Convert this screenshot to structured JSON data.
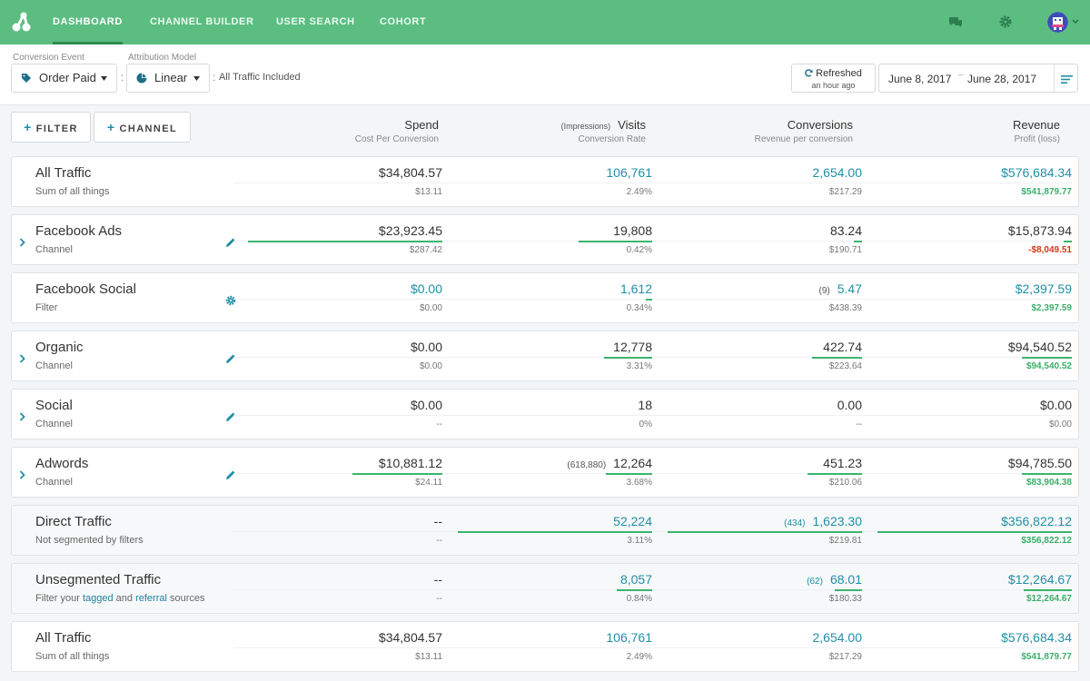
{
  "nav": {
    "links": [
      "DASHBOARD",
      "CHANNEL BUILDER",
      "USER SEARCH",
      "COHORT"
    ],
    "icons": [
      "chat-icon",
      "gear-icon",
      "avatar"
    ]
  },
  "toolbar": {
    "conversion_event_label": "Conversion Event",
    "conversion_event_value": "Order Paid",
    "attribution_model_label": "Attribution Model",
    "attribution_model_value": "Linear",
    "separator": ":",
    "traffic_note": "All Traffic Included",
    "refresh_title": "Refreshed",
    "refresh_sub": "an hour ago",
    "date_start": "June 8, 2017",
    "date_sep": "–",
    "date_end": "June 28, 2017"
  },
  "header": {
    "filter_button": "FILTER",
    "channel_button": "CHANNEL",
    "columns": [
      {
        "title": "Spend",
        "prefix": "",
        "sub": "Cost Per Conversion"
      },
      {
        "title": "Visits",
        "prefix": "(Impressions)",
        "sub": "Conversion Rate"
      },
      {
        "title": "Conversions",
        "prefix": "",
        "sub": "Revenue per conversion"
      },
      {
        "title": "Revenue",
        "prefix": "",
        "sub": "Profit (loss)"
      }
    ]
  },
  "colors": {
    "nav": "#5bbd80",
    "accent": "#1f8fa8",
    "positive": "#3aaf6a",
    "negative": "#cc3a1a",
    "bar": "#3bb56d"
  },
  "rows": [
    {
      "name": "All Traffic",
      "sub": "Sum of all things",
      "expandable": false,
      "action_icon": "",
      "cells": [
        {
          "v": "$34,804.57",
          "s": "$13.11"
        },
        {
          "v": "106,761",
          "s": "2.49%",
          "vblue": true
        },
        {
          "v": "2,654.00",
          "s": "$217.29",
          "vblue": true
        },
        {
          "v": "$576,684.34",
          "s": "$541,879.77",
          "vblue": true,
          "sgreen": true
        }
      ]
    },
    {
      "name": "Facebook Ads",
      "sub": "Channel",
      "expandable": true,
      "action_icon": "pencil-icon",
      "cells": [
        {
          "v": "$23,923.45",
          "s": "$287.42",
          "bar": 0.93
        },
        {
          "v": "19,808",
          "s": "0.42%",
          "bar": 0.35
        },
        {
          "v": "83.24",
          "s": "$190.71",
          "bar": 0.04
        },
        {
          "v": "$15,873.94",
          "s": "-$8,049.51",
          "sred": true,
          "bar": 0.04
        }
      ]
    },
    {
      "name": "Facebook Social",
      "sub": "Filter",
      "expandable": false,
      "action_icon": "gear-icon",
      "cells": [
        {
          "v": "$0.00",
          "s": "$0.00",
          "vblue": true
        },
        {
          "v": "1,612",
          "s": "0.34%",
          "vblue": true,
          "bar": 0.03
        },
        {
          "v": "5.47",
          "pre": "(9)",
          "s": "$438.39",
          "vblue": true
        },
        {
          "v": "$2,397.59",
          "s": "$2,397.59",
          "vblue": true,
          "sgreen": true
        }
      ]
    },
    {
      "name": "Organic",
      "sub": "Channel",
      "expandable": true,
      "action_icon": "pencil-icon",
      "cells": [
        {
          "v": "$0.00",
          "s": "$0.00"
        },
        {
          "v": "12,778",
          "s": "3.31%",
          "bar": 0.23
        },
        {
          "v": "422.74",
          "s": "$223.64",
          "bar": 0.24
        },
        {
          "v": "$94,540.52",
          "s": "$94,540.52",
          "sgreen": true,
          "bar": 0.24
        }
      ]
    },
    {
      "name": "Social",
      "sub": "Channel",
      "expandable": true,
      "action_icon": "pencil-icon",
      "cells": [
        {
          "v": "$0.00",
          "s": "--"
        },
        {
          "v": "18",
          "s": "0%"
        },
        {
          "v": "0.00",
          "s": "--"
        },
        {
          "v": "$0.00",
          "s": "$0.00"
        }
      ]
    },
    {
      "name": "Adwords",
      "sub": "Channel",
      "expandable": true,
      "action_icon": "pencil-icon",
      "cells": [
        {
          "v": "$10,881.12",
          "s": "$24.11",
          "bar": 0.43
        },
        {
          "v": "12,264",
          "pre": "(618,880)",
          "s": "3.68%",
          "bar": 0.22
        },
        {
          "v": "451.23",
          "s": "$210.06",
          "bar": 0.26
        },
        {
          "v": "$94,785.50",
          "s": "$83,904.38",
          "sgreen": true,
          "bar": 0.24
        }
      ]
    },
    {
      "name": "Direct Traffic",
      "sub": "Not segmented by filters",
      "expandable": false,
      "action_icon": "",
      "gray": true,
      "cells": [
        {
          "v": "--",
          "s": "--"
        },
        {
          "v": "52,224",
          "s": "3.11%",
          "vblue": true,
          "bar": 0.93
        },
        {
          "v": "1,623.30",
          "pre": "(434)",
          "s": "$219.81",
          "vblue": true,
          "preblue": true,
          "bar": 0.93
        },
        {
          "v": "$356,822.12",
          "s": "$356,822.12",
          "vblue": true,
          "sgreen": true,
          "bar": 0.93
        }
      ]
    },
    {
      "name": "Unsegmented Traffic",
      "sub_parts": [
        "Filter your ",
        "tagged",
        " and ",
        "referral",
        " sources"
      ],
      "expandable": false,
      "action_icon": "",
      "gray": true,
      "cells": [
        {
          "v": "--",
          "s": "--"
        },
        {
          "v": "8,057",
          "s": "0.84%",
          "vblue": true,
          "bar": 0.17
        },
        {
          "v": "68.01",
          "pre": "(62)",
          "s": "$180.33",
          "vblue": true,
          "preblue": true,
          "bar": 0.13
        },
        {
          "v": "$12,264.67",
          "s": "$12,264.67",
          "vblue": true,
          "sgreen": true,
          "bar": 0.23
        }
      ]
    },
    {
      "name": "All Traffic",
      "sub": "Sum of all things",
      "expandable": false,
      "action_icon": "",
      "cells": [
        {
          "v": "$34,804.57",
          "s": "$13.11"
        },
        {
          "v": "106,761",
          "s": "2.49%",
          "vblue": true
        },
        {
          "v": "2,654.00",
          "s": "$217.29",
          "vblue": true
        },
        {
          "v": "$576,684.34",
          "s": "$541,879.77",
          "vblue": true,
          "sgreen": true
        }
      ]
    }
  ]
}
